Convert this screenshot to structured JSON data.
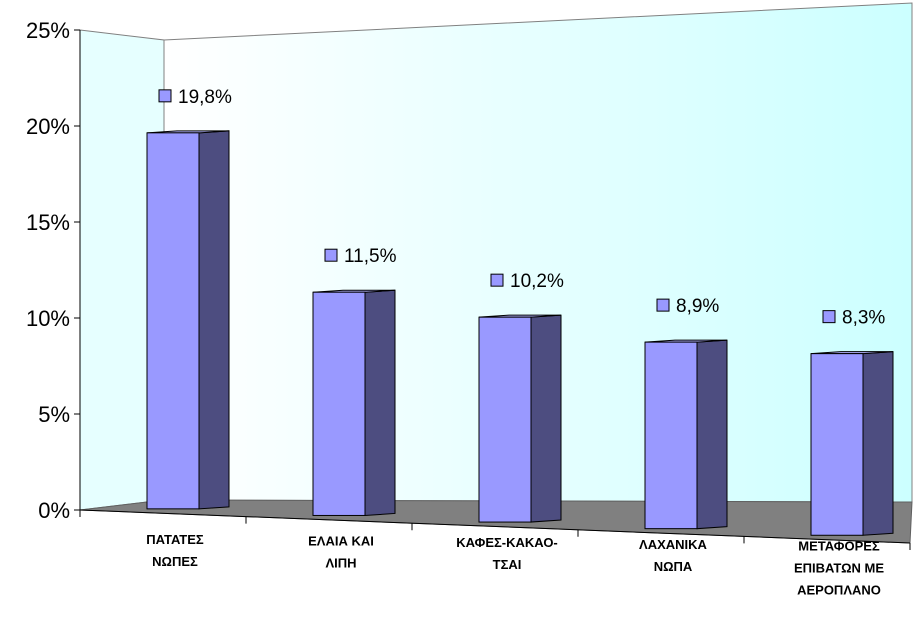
{
  "chart_data": {
    "type": "bar",
    "categories": [
      [
        "ΠΑΤΑΤΕΣ",
        "ΝΩΠΕΣ"
      ],
      [
        "ΕΛΑΙΑ ΚΑΙ",
        "ΛΙΠΗ"
      ],
      [
        "ΚΑΦΕΣ-ΚΑΚΑΟ-",
        "ΤΣΑΙ"
      ],
      [
        "ΛΑΧΑΝΙΚΑ",
        "ΝΩΠΑ"
      ],
      [
        "ΜΕΤΑΦΟΡΕΣ",
        "ΕΠΙΒΑΤΩΝ ΜΕ",
        "ΑΕΡΟΠΛΑΝΟ"
      ]
    ],
    "values": [
      19.8,
      11.5,
      10.2,
      8.9,
      8.3
    ],
    "data_labels": [
      "19,8%",
      "11,5%",
      "10,2%",
      "8,9%",
      "8,3%"
    ],
    "y_ticks": [
      "0%",
      "5%",
      "10%",
      "15%",
      "20%",
      "25%"
    ],
    "ylim": [
      0,
      25
    ],
    "title": "",
    "xlabel": "",
    "ylabel": "",
    "legend": "none",
    "style": "3d-column",
    "colors": {
      "bar_front": "#9999ff",
      "bar_side": "#4d4d80",
      "bar_top": "#b3b3ff",
      "wall": "#ccffff",
      "floor": "#808080",
      "legend_key": "#9999ff"
    }
  }
}
